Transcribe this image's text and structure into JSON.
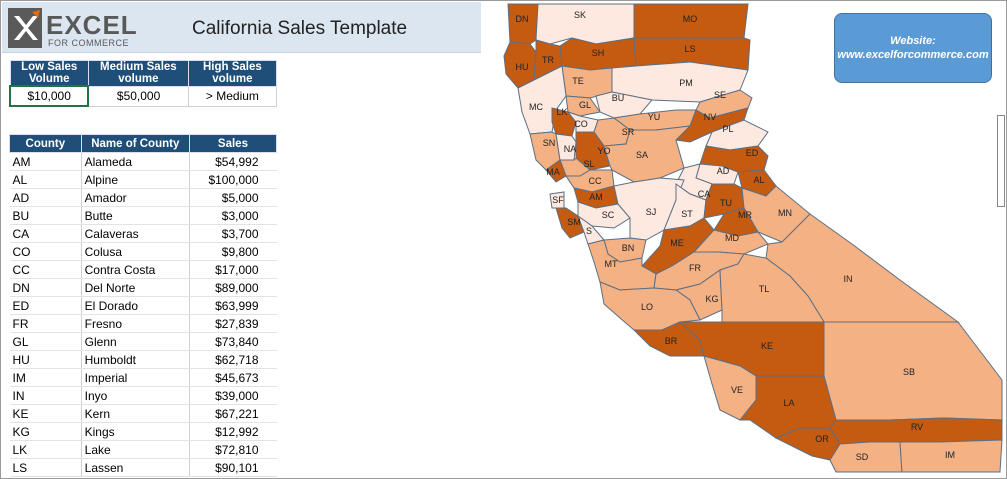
{
  "header": {
    "logo_main": "EXCEL",
    "logo_sub": "FOR COMMERCE",
    "title": "California Sales Template"
  },
  "legend": {
    "headers": [
      "Low Sales Volume",
      "Medium Sales volume",
      "High Sales volume"
    ],
    "values": [
      "$10,000",
      "$50,000",
      "> Medium"
    ]
  },
  "table": {
    "headers": [
      "County",
      "Name of County",
      "Sales"
    ],
    "rows": [
      [
        "AM",
        "Alameda",
        "$54,992"
      ],
      [
        "AL",
        "Alpine",
        "$100,000"
      ],
      [
        "AD",
        "Amador",
        "$5,000"
      ],
      [
        "BU",
        "Butte",
        "$3,000"
      ],
      [
        "CA",
        "Calaveras",
        "$3,700"
      ],
      [
        "CO",
        "Colusa",
        "$9,800"
      ],
      [
        "CC",
        "Contra Costa",
        "$17,000"
      ],
      [
        "DN",
        "Del Norte",
        "$89,000"
      ],
      [
        "ED",
        "El Dorado",
        "$63,999"
      ],
      [
        "FR",
        "Fresno",
        "$27,839"
      ],
      [
        "GL",
        "Glenn",
        "$73,840"
      ],
      [
        "HU",
        "Humboldt",
        "$62,718"
      ],
      [
        "IM",
        "Imperial",
        "$45,673"
      ],
      [
        "IN",
        "Inyo",
        "$39,000"
      ],
      [
        "KE",
        "Kern",
        "$67,221"
      ],
      [
        "KG",
        "Kings",
        "$12,992"
      ],
      [
        "LK",
        "Lake",
        "$72,810"
      ],
      [
        "LS",
        "Lassen",
        "$90,101"
      ]
    ]
  },
  "website": {
    "label": "Website:",
    "url": "www.excelforcommerce.com"
  },
  "colors": {
    "low": "#fde9df",
    "medium": "#f4b183",
    "high": "#c55a11",
    "header": "#1f4e79"
  },
  "map_labels": {
    "DN": "DN",
    "SK": "SK",
    "MO": "MO",
    "HU": "HU",
    "TR": "TR",
    "SH": "SH",
    "LS": "LS",
    "TE": "TE",
    "PM": "PM",
    "BU": "BU",
    "SE": "SE",
    "MC": "MC",
    "GL": "GL",
    "LK": "LK",
    "CO": "CO",
    "YU": "YU",
    "NV": "NV",
    "PL": "PL",
    "SR": "SR",
    "SN": "SN",
    "NA": "NA",
    "YO": "YO",
    "SA": "SA",
    "ED": "ED",
    "SL": "SL",
    "MA": "MA",
    "CC": "CC",
    "AD": "AD",
    "AL": "AL",
    "AM": "AM",
    "CA": "CA",
    "SF": "SF",
    "SC": "SC",
    "SJ": "SJ",
    "ST": "ST",
    "TU": "TU",
    "MR": "MR",
    "MN": "MN",
    "SM": "SM",
    "S": "S",
    "BN": "BN",
    "ME": "ME",
    "MD": "MD",
    "MT": "MT",
    "FR": "FR",
    "IN": "IN",
    "KG": "KG",
    "TL": "TL",
    "LO": "LO",
    "BR": "BR",
    "KE": "KE",
    "SB": "SB",
    "VE": "VE",
    "LA": "LA",
    "RV": "RV",
    "OR": "OR",
    "SD": "SD",
    "IM": "IM"
  }
}
